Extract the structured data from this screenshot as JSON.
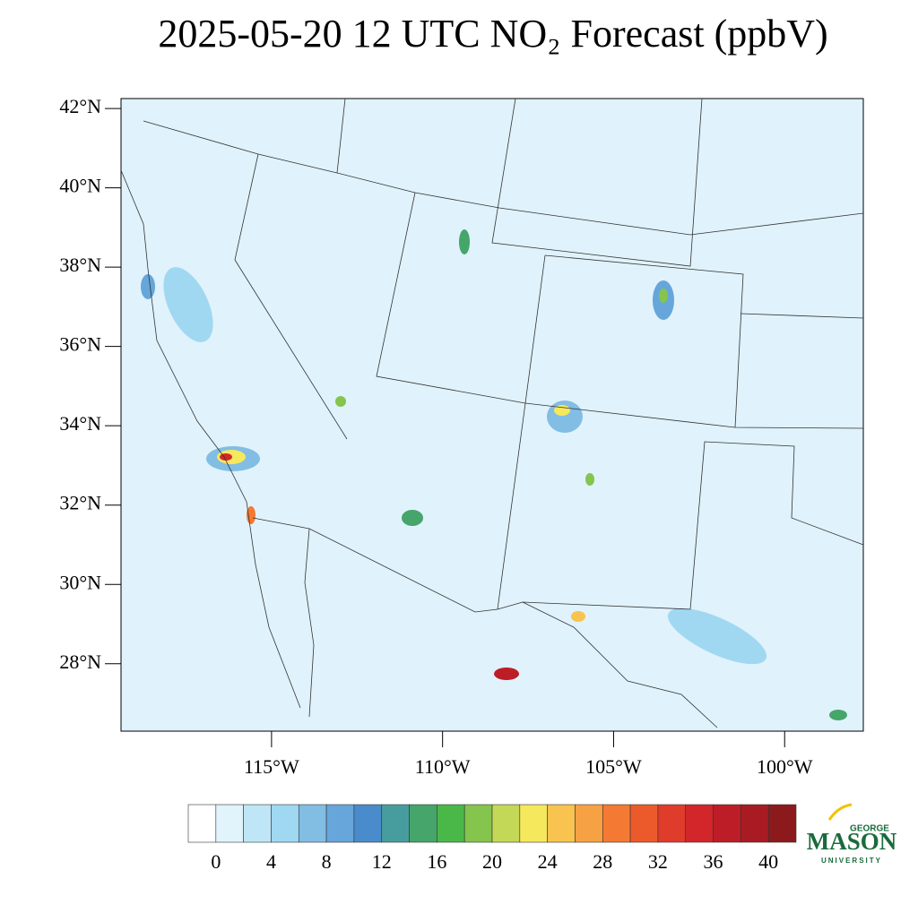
{
  "chart_data": {
    "type": "map",
    "title": "2025-05-20 12 UTC NO₂ Forecast (ppbV)",
    "xlim": [
      -119.4,
      -97.7
    ],
    "ylim": [
      26.3,
      42.25
    ],
    "yticks": [
      {
        "value": 42,
        "label": "42°N"
      },
      {
        "value": 40,
        "label": "40°N"
      },
      {
        "value": 38,
        "label": "38°N"
      },
      {
        "value": 36,
        "label": "36°N"
      },
      {
        "value": 34,
        "label": "34°N"
      },
      {
        "value": 32,
        "label": "32°N"
      },
      {
        "value": 30,
        "label": "30°N"
      },
      {
        "value": 28,
        "label": "28°N"
      }
    ],
    "xticks": [
      {
        "value": -115,
        "label": "115°W"
      },
      {
        "value": -110,
        "label": "110°W"
      },
      {
        "value": -105,
        "label": "105°W"
      },
      {
        "value": -100,
        "label": "100°W"
      }
    ],
    "colorbar": {
      "lim": [
        -2,
        42
      ],
      "ticks": [
        0,
        4,
        8,
        12,
        16,
        20,
        24,
        28,
        32,
        36,
        40
      ],
      "colors": [
        "#ffffff",
        "#e1f3fb",
        "#bfe6f7",
        "#a0d8f2",
        "#82bde4",
        "#66a6da",
        "#4a8ccb",
        "#479d9e",
        "#46a56a",
        "#4ab849",
        "#85c44d",
        "#c4d857",
        "#f6e85c",
        "#f8c34e",
        "#f7a145",
        "#f47a33",
        "#ec5a2c",
        "#e03c2b",
        "#d3262b",
        "#bd1d26",
        "#a81b22",
        "#8c1a1c"
      ]
    },
    "logo": {
      "top": "GEORGE",
      "main": "MASON",
      "bottom": "UNIVERSITY"
    }
  }
}
